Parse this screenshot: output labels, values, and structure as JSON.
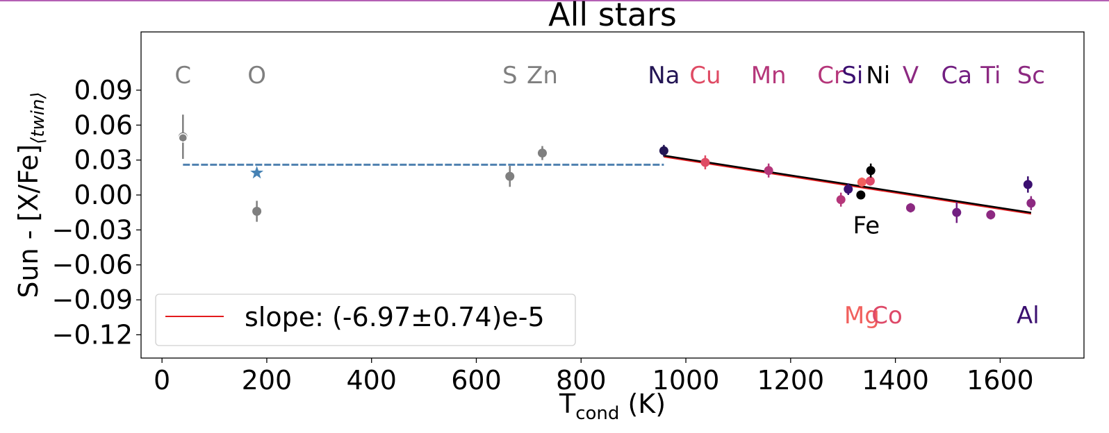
{
  "chart_data": {
    "type": "scatter",
    "title": "All stars",
    "xlabel_main": "T",
    "xlabel_sub": "cond",
    "xlabel_unit": " (K)",
    "ylabel": "Sun - [X/Fe]",
    "ylabel_sub": "⟨twin⟩",
    "xlim": [
      -40,
      1760
    ],
    "ylim": [
      -0.14,
      0.14
    ],
    "xticks": [
      0,
      200,
      400,
      600,
      800,
      1000,
      1200,
      1400,
      1600
    ],
    "yticks": [
      0.09,
      0.06,
      0.03,
      0.0,
      -0.03,
      -0.06,
      -0.09,
      -0.12
    ],
    "ytick_labels": [
      "0.09",
      "0.06",
      "0.03",
      "0.00",
      "−0.03",
      "−0.06",
      "−0.09",
      "−0.12"
    ],
    "grid": false,
    "legend": {
      "placement": "lower-left",
      "entries": [
        {
          "label": "slope: (-6.97±0.74)e-5",
          "color": "#e31a1c"
        }
      ]
    },
    "points": [
      {
        "element": "C",
        "x": 40,
        "y": 0.05,
        "err": 0.019,
        "color": "#7f7f7f",
        "open_marker_y": 0.049
      },
      {
        "element": "O",
        "x": 181,
        "y": -0.014,
        "err": 0.009,
        "color": "#7f7f7f"
      },
      {
        "element": "S",
        "x": 664,
        "y": 0.016,
        "err": 0.009,
        "color": "#7f7f7f"
      },
      {
        "element": "Zn",
        "x": 726,
        "y": 0.036,
        "err": 0.006,
        "color": "#7f7f7f"
      },
      {
        "element": "Na",
        "x": 958,
        "y": 0.038,
        "err": 0.005,
        "color": "#231554"
      },
      {
        "element": "Cu",
        "x": 1037,
        "y": 0.028,
        "err": 0.006,
        "color": "#df4b64"
      },
      {
        "element": "Mn",
        "x": 1158,
        "y": 0.021,
        "err": 0.006,
        "color": "#b5367a"
      },
      {
        "element": "Cr",
        "x": 1296,
        "y": -0.004,
        "err": 0.006,
        "color": "#b5367a"
      },
      {
        "element": "Si",
        "x": 1310,
        "y": 0.005,
        "err": 0.005,
        "color": "#3b0f70"
      },
      {
        "element": "Fe",
        "x": 1334,
        "y": 0.0,
        "err": 0.0,
        "color": "#000000"
      },
      {
        "element": "Mg",
        "x": 1336,
        "y": 0.011,
        "err": 0.004,
        "color": "#f1605d"
      },
      {
        "element": "Co",
        "x": 1352,
        "y": 0.012,
        "err": 0.004,
        "color": "#de4968"
      },
      {
        "element": "Ni",
        "x": 1353,
        "y": 0.021,
        "err": 0.006,
        "color": "#000000"
      },
      {
        "element": "V",
        "x": 1429,
        "y": -0.011,
        "err": 0.004,
        "color": "#8c2981"
      },
      {
        "element": "Ca",
        "x": 1517,
        "y": -0.015,
        "err": 0.009,
        "color": "#721f81"
      },
      {
        "element": "Ti",
        "x": 1582,
        "y": -0.017,
        "err": 0.004,
        "color": "#8c2981"
      },
      {
        "element": "Al",
        "x": 1653,
        "y": 0.009,
        "err": 0.007,
        "color": "#3b0f70"
      },
      {
        "element": "Sc",
        "x": 1659,
        "y": -0.007,
        "err": 0.006,
        "color": "#8c2981"
      }
    ],
    "star_marker": {
      "x": 181,
      "y": 0.019,
      "color": "#4682b4"
    },
    "dashed_fit": {
      "x": [
        40,
        958
      ],
      "y": [
        0.026,
        0.026
      ],
      "color": "#4f81b0"
    },
    "black_fit": {
      "x": [
        958,
        1659
      ],
      "y": [
        0.0335,
        -0.0155
      ],
      "color": "#000000"
    },
    "red_fit": {
      "x": [
        958,
        1659
      ],
      "y": [
        0.0335,
        -0.0155
      ],
      "color": "#e31a1c"
    },
    "top_labels": [
      {
        "text": "C",
        "x": 40,
        "color": "#7f7f7f"
      },
      {
        "text": "O",
        "x": 181,
        "color": "#7f7f7f"
      },
      {
        "text": "S",
        "x": 664,
        "color": "#7f7f7f"
      },
      {
        "text": "Zn",
        "x": 726,
        "color": "#7f7f7f"
      },
      {
        "text": "Na",
        "x": 958,
        "color": "#231554"
      },
      {
        "text": "Cu",
        "x": 1037,
        "color": "#df4b64"
      },
      {
        "text": "Mn",
        "x": 1158,
        "color": "#b5367a"
      },
      {
        "text": "Cr",
        "x": 1276,
        "color": "#b5367a"
      },
      {
        "text": "Si",
        "x": 1318,
        "color": "#3b0f70"
      },
      {
        "text": "Ni",
        "x": 1367,
        "color": "#000000"
      },
      {
        "text": "V",
        "x": 1429,
        "color": "#8c2981"
      },
      {
        "text": "Ca",
        "x": 1517,
        "color": "#721f81"
      },
      {
        "text": "Ti",
        "x": 1582,
        "color": "#8c2981"
      },
      {
        "text": "Sc",
        "x": 1659,
        "color": "#8c2981"
      }
    ],
    "bottom_labels": [
      {
        "text": "Mg",
        "x": 1336,
        "color": "#f1605d"
      },
      {
        "text": "Co",
        "x": 1384,
        "color": "#de4968"
      },
      {
        "text": "Al",
        "x": 1653,
        "color": "#3b0f70"
      }
    ],
    "fe_label": {
      "text": "Fe",
      "x": 1334,
      "y": -0.026,
      "color": "#000000"
    }
  }
}
